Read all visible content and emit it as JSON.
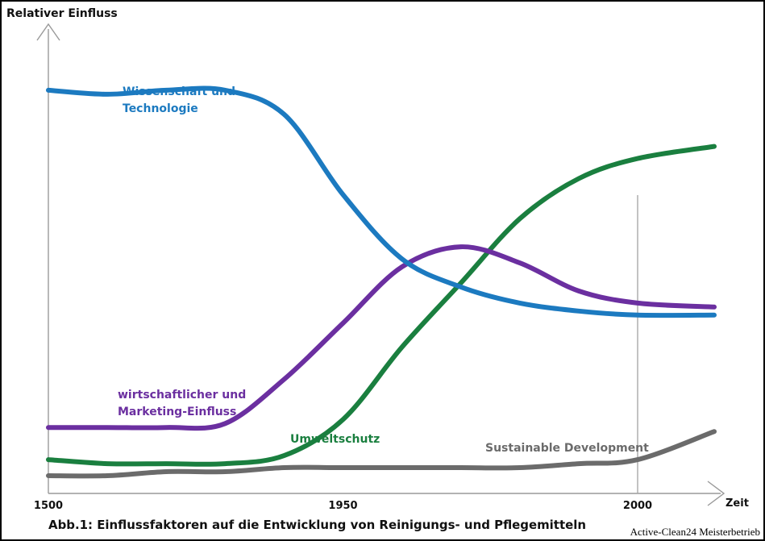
{
  "chart_data": {
    "type": "line",
    "title": "Abb.1: Einflussfaktoren auf die Entwicklung von Reinigungs- und Pflegemitteln",
    "ylabel": "Relativer Einfluss",
    "xlabel": "Zeit",
    "x_ticks": [
      {
        "x": 0,
        "label": "1500"
      },
      {
        "x": 50,
        "label": "1950"
      },
      {
        "x": 100,
        "label": "2000"
      }
    ],
    "reference_line_x": 100,
    "xlim": [
      0,
      112
    ],
    "ylim": [
      0,
      100
    ],
    "grid": false,
    "legend": "inline labels",
    "series": [
      {
        "name": "Wissenschaft und Technologie",
        "color": "#1c7ac0",
        "points": [
          [
            0,
            96
          ],
          [
            10,
            95
          ],
          [
            20,
            96
          ],
          [
            30,
            96
          ],
          [
            40,
            90
          ],
          [
            50,
            70
          ],
          [
            60,
            54
          ],
          [
            70,
            47
          ],
          [
            80,
            43
          ],
          [
            90,
            41
          ],
          [
            100,
            40
          ],
          [
            113,
            40
          ]
        ]
      },
      {
        "name": "wirtschaftlicher und Marketing-Einfluss",
        "color": "#6b2fa0",
        "points": [
          [
            0,
            12
          ],
          [
            10,
            12
          ],
          [
            20,
            12
          ],
          [
            30,
            13
          ],
          [
            40,
            24
          ],
          [
            50,
            38
          ],
          [
            60,
            52
          ],
          [
            70,
            57
          ],
          [
            80,
            53
          ],
          [
            90,
            46
          ],
          [
            100,
            43
          ],
          [
            113,
            42
          ]
        ]
      },
      {
        "name": "Umweltschutz",
        "color": "#1a7f3f",
        "points": [
          [
            0,
            4
          ],
          [
            10,
            3
          ],
          [
            20,
            3
          ],
          [
            30,
            3
          ],
          [
            40,
            5
          ],
          [
            50,
            14
          ],
          [
            60,
            32
          ],
          [
            70,
            48
          ],
          [
            80,
            64
          ],
          [
            90,
            74
          ],
          [
            100,
            79
          ],
          [
            113,
            82
          ]
        ]
      },
      {
        "name": "Sustainable Development",
        "color": "#6b6b6b",
        "points": [
          [
            0,
            0
          ],
          [
            10,
            0
          ],
          [
            20,
            1
          ],
          [
            30,
            1
          ],
          [
            40,
            2
          ],
          [
            50,
            2
          ],
          [
            60,
            2
          ],
          [
            70,
            2
          ],
          [
            80,
            2
          ],
          [
            90,
            3
          ],
          [
            100,
            4
          ],
          [
            113,
            11
          ]
        ]
      }
    ]
  },
  "credit": "Active-Clean24 Meisterbetrieb"
}
